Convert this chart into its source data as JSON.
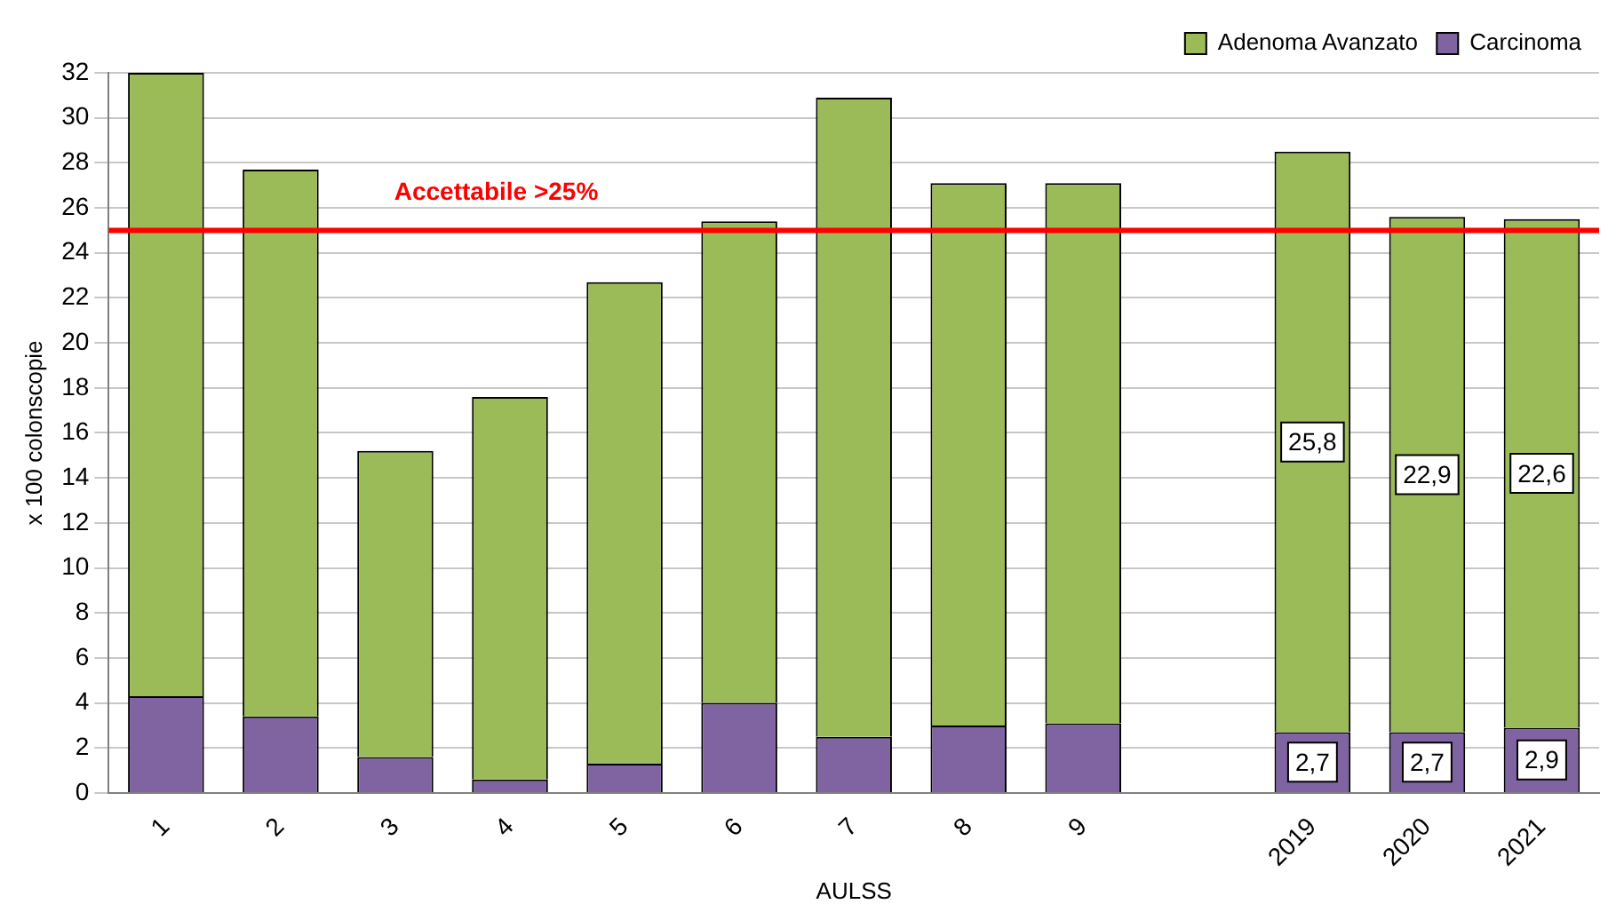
{
  "chart_data": {
    "type": "bar",
    "stacked": true,
    "xlabel": "AULSS",
    "ylabel": "x 100 colonscopie",
    "categories": [
      "1",
      "2",
      "3",
      "4",
      "5",
      "6",
      "7",
      "8",
      "9",
      null,
      "2019",
      "2020",
      "2021"
    ],
    "series": [
      {
        "name": "Carcinoma",
        "color": "#8064a2",
        "values": [
          4.3,
          3.4,
          1.6,
          0.6,
          1.3,
          4.0,
          2.5,
          3.0,
          3.1,
          null,
          2.7,
          2.7,
          2.9
        ],
        "value_labels": [
          null,
          null,
          null,
          null,
          null,
          null,
          null,
          null,
          null,
          null,
          "2,7",
          "2,7",
          "2,9"
        ]
      },
      {
        "name": "Adenoma Avanzato",
        "color": "#9bbb59",
        "values": [
          27.7,
          24.3,
          13.6,
          17.0,
          21.4,
          21.4,
          28.4,
          24.1,
          24.0,
          null,
          25.8,
          22.9,
          22.6
        ],
        "value_labels": [
          null,
          null,
          null,
          null,
          null,
          null,
          null,
          null,
          null,
          null,
          "25,8",
          "22,9",
          "22,6"
        ]
      }
    ],
    "ylim": [
      0,
      32
    ],
    "yticks": [
      0,
      2,
      4,
      6,
      8,
      10,
      12,
      14,
      16,
      18,
      20,
      22,
      24,
      26,
      28,
      30,
      32
    ],
    "grid": "y",
    "legend": "top right",
    "ref_lines": [
      {
        "axis": "y",
        "value": 25,
        "label": "Accettabile >25%",
        "color": "#ff0000"
      }
    ]
  }
}
